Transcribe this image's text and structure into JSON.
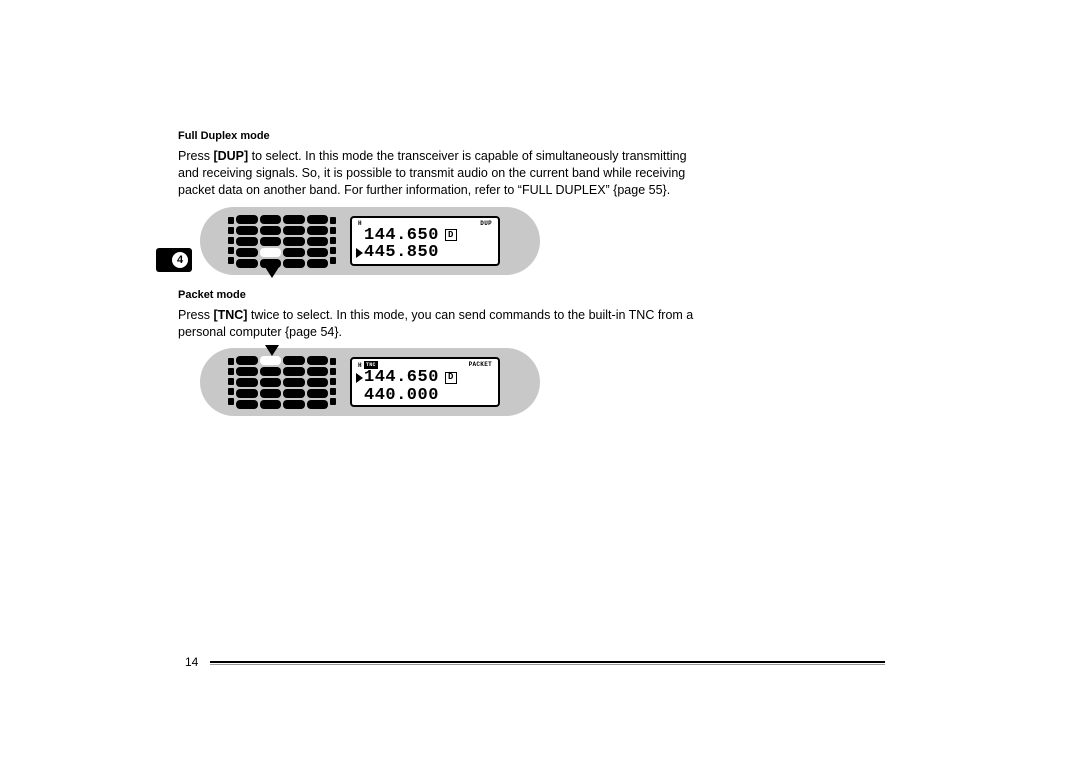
{
  "page_number": "14",
  "tab_number": "4",
  "colors": {
    "panel_bg": "#c8c8c8",
    "text": "#000000",
    "page_bg": "#ffffff"
  },
  "section1": {
    "heading": "Full Duplex mode",
    "para_pre": "Press ",
    "key": "[DUP]",
    "para_post": " to select.  In this mode the transceiver is capable of simultaneously transmitting and receiving signals.  So, it is possible to transmit audio on the current band while receiving packet data on another band.  For further information, refer to “FULL DUPLEX” {page 55}.",
    "lcd": {
      "top_left": "H",
      "top_right": "DUP",
      "line1_freq": "144.650",
      "line1_ind": "D",
      "line1_pointer": false,
      "line2_freq": "445.850",
      "line2_pointer": true,
      "arrow": "bottom",
      "highlight_row": 3,
      "highlight_col": 1
    }
  },
  "section2": {
    "heading": "Packet mode",
    "para_pre": "Press ",
    "key": "[TNC]",
    "para_post": " twice to select.  In this mode, you can send commands to the built-in TNC from a personal computer {page 54}.",
    "lcd": {
      "top_left": "H",
      "top_tnc": "TNC",
      "top_right": "PACKET",
      "line1_freq": "144.650",
      "line1_ind": "D",
      "line1_pointer": true,
      "line2_freq": "440.000",
      "line2_pointer": false,
      "arrow": "top",
      "highlight_row": 0,
      "highlight_col": 1
    }
  }
}
